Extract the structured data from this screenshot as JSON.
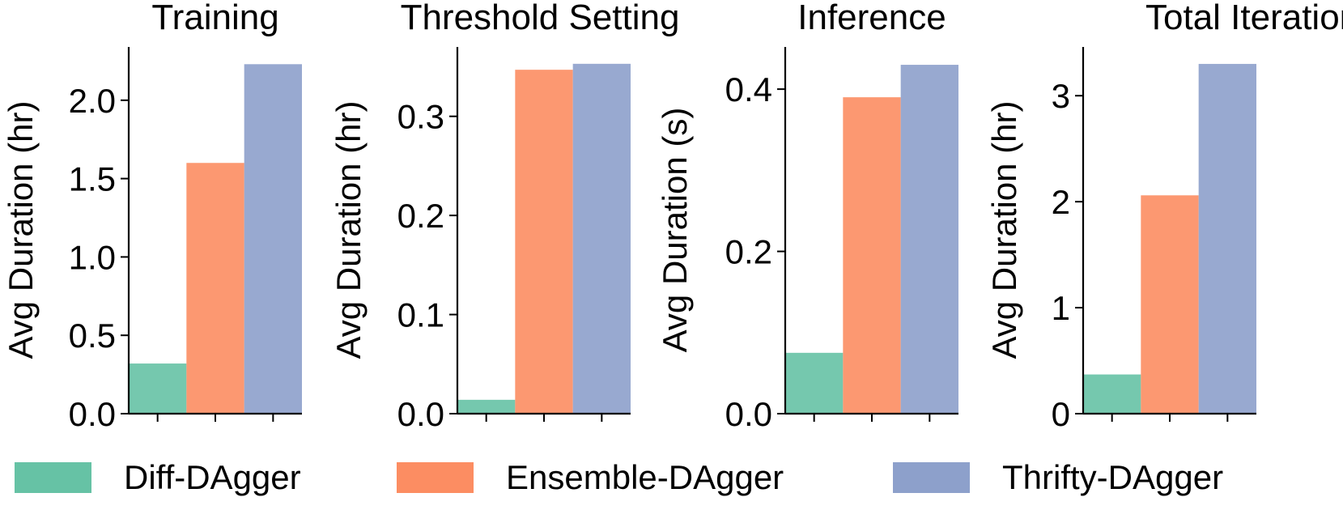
{
  "chart_data": [
    {
      "type": "bar",
      "title": "Training",
      "ylabel": "Avg Duration (hr)",
      "categories": [
        "Diff-DAgger",
        "Ensemble-DAgger",
        "Thrifty-DAgger"
      ],
      "values": [
        0.32,
        1.6,
        2.23
      ],
      "ylim": [
        0,
        2.34
      ],
      "yticks": [
        0.0,
        0.5,
        1.0,
        1.5,
        2.0
      ],
      "ytick_labels": [
        "0.0",
        "0.5",
        "1.0",
        "1.5",
        "2.0"
      ]
    },
    {
      "type": "bar",
      "title": "Threshold Setting",
      "ylabel": "Avg Duration (hr)",
      "categories": [
        "Diff-DAgger",
        "Ensemble-DAgger",
        "Thrifty-DAgger"
      ],
      "values": [
        0.014,
        0.347,
        0.353
      ],
      "ylim": [
        0,
        0.37
      ],
      "yticks": [
        0.0,
        0.1,
        0.2,
        0.3
      ],
      "ytick_labels": [
        "0.0",
        "0.1",
        "0.2",
        "0.3"
      ]
    },
    {
      "type": "bar",
      "title": "Inference",
      "ylabel": "Avg Duration (s)",
      "categories": [
        "Diff-DAgger",
        "Ensemble-DAgger",
        "Thrifty-DAgger"
      ],
      "values": [
        0.075,
        0.39,
        0.43
      ],
      "ylim": [
        0,
        0.452
      ],
      "yticks": [
        0.0,
        0.2,
        0.4
      ],
      "ytick_labels": [
        "0.0",
        "0.2",
        "0.4"
      ]
    },
    {
      "type": "bar",
      "title": "Total Iteration",
      "ylabel": "Avg Duration (hr)",
      "categories": [
        "Diff-DAgger",
        "Ensemble-DAgger",
        "Thrifty-DAgger"
      ],
      "values": [
        0.37,
        2.06,
        3.3
      ],
      "ylim": [
        0,
        3.46
      ],
      "yticks": [
        0,
        1,
        2,
        3
      ],
      "ytick_labels": [
        "0",
        "1",
        "2",
        "3"
      ]
    }
  ],
  "legend": [
    {
      "label": "Diff-DAgger",
      "color": "#66c2a5"
    },
    {
      "label": "Ensemble-DAgger",
      "color": "#fc8d62"
    },
    {
      "label": "Thrifty-DAgger",
      "color": "#8da0cb"
    }
  ],
  "bar_alpha": 0.9
}
